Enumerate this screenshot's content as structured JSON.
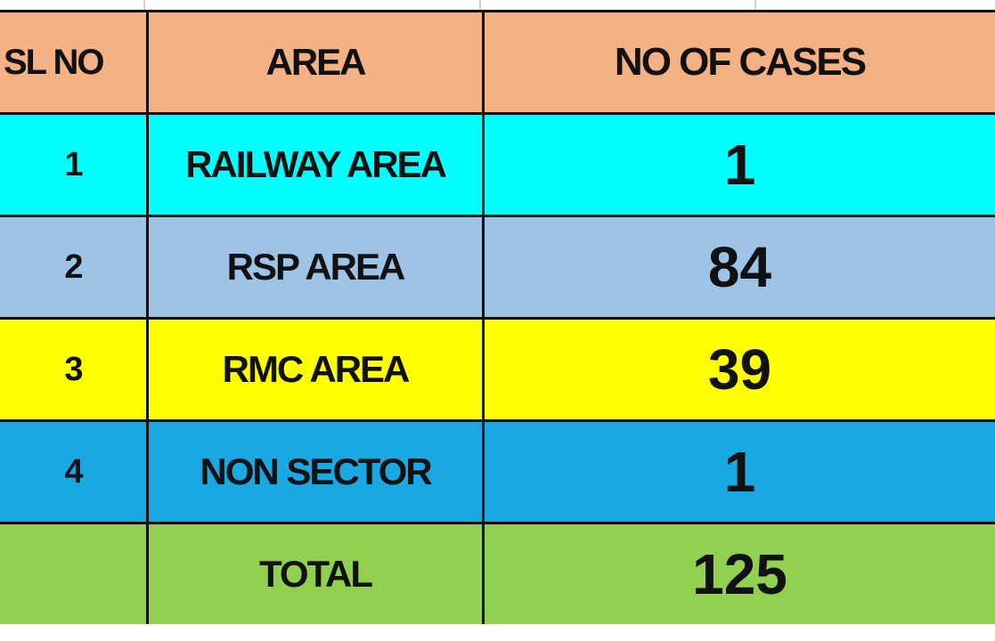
{
  "table": {
    "header": [
      "SL NO",
      "AREA",
      "NO OF CASES"
    ],
    "rows": [
      [
        "1",
        "RAILWAY AREA",
        "1"
      ],
      [
        "2",
        "RSP AREA",
        "84"
      ],
      [
        "3",
        "RMC AREA",
        "39"
      ],
      [
        "4",
        "NON SECTOR",
        "1"
      ]
    ],
    "total": {
      "label": "TOTAL",
      "value": "125"
    }
  }
}
